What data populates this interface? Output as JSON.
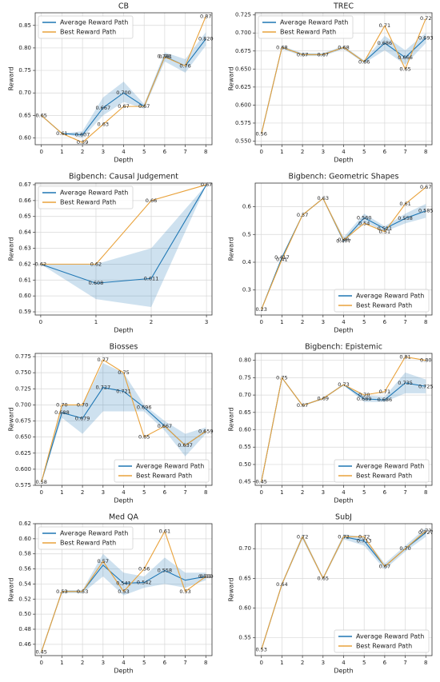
{
  "chart_data": [
    {
      "type": "line",
      "title": "CB",
      "xlabel": "Depth",
      "ylabel": "Reward",
      "grid": true,
      "legend_loc": "upper left",
      "x": [
        0,
        1,
        2,
        3,
        4,
        5,
        6,
        7,
        8
      ],
      "xlim": [
        -0.3,
        8.3
      ],
      "xticks": [
        0,
        1,
        2,
        3,
        4,
        5,
        6,
        7,
        8
      ],
      "ylim": [
        0.585,
        0.878
      ],
      "yticks": [
        {
          "value": 0.6,
          "label": "0.60"
        },
        0.65,
        {
          "value": 0.7,
          "label": "0.70"
        },
        0.75,
        {
          "value": 0.8,
          "label": "0.80"
        },
        0.85
      ],
      "series": [
        {
          "name": "Average Reward Path",
          "color": "#1f77b4",
          "values": [
            0.65,
            0.61,
            0.607,
            0.667,
            0.7,
            0.67,
            0.781,
            0.76,
            0.82
          ],
          "value_labels": [
            "0.65",
            "0.61",
            "0.607",
            "0.667",
            "0.700",
            "0.67",
            "0.781",
            "0.76",
            "0.820"
          ],
          "lower": [
            0.65,
            0.61,
            0.6,
            0.65,
            0.68,
            0.665,
            0.77,
            0.745,
            0.805
          ],
          "upper": [
            0.65,
            0.61,
            0.615,
            0.69,
            0.725,
            0.675,
            0.79,
            0.775,
            0.835
          ]
        },
        {
          "name": "Best Reward Path",
          "color": "#e9a23b",
          "values": [
            0.65,
            0.61,
            0.59,
            0.63,
            0.67,
            0.67,
            0.78,
            0.76,
            0.87
          ],
          "value_labels": [
            null,
            null,
            "0.59",
            "0.63",
            "0.67",
            null,
            "0.78",
            null,
            "0.87"
          ]
        }
      ]
    },
    {
      "type": "line",
      "title": "TREC",
      "xlabel": "Depth",
      "ylabel": "Reward",
      "grid": true,
      "legend_loc": "upper left",
      "x": [
        0,
        1,
        2,
        3,
        4,
        5,
        6,
        7,
        8
      ],
      "xlim": [
        -0.3,
        8.3
      ],
      "xticks": [
        0,
        1,
        2,
        3,
        4,
        5,
        6,
        7,
        8
      ],
      "ylim": [
        0.545,
        0.728
      ],
      "yticks": [
        {
          "value": 0.55,
          "label": "0.550"
        },
        0.575,
        {
          "value": 0.6,
          "label": "0.600"
        },
        0.625,
        {
          "value": 0.65,
          "label": "0.650"
        },
        0.675,
        {
          "value": 0.7,
          "label": "0.700"
        },
        0.725
      ],
      "series": [
        {
          "name": "Average Reward Path",
          "color": "#1f77b4",
          "values": [
            0.56,
            0.68,
            0.67,
            0.67,
            0.68,
            0.66,
            0.686,
            0.666,
            0.693
          ],
          "value_labels": [
            "0.56",
            "0.68",
            "0.67",
            "0.67",
            "0.68",
            "0.66",
            "0.686",
            "0.666",
            "0.693"
          ],
          "lower": [
            0.56,
            0.678,
            0.668,
            0.668,
            0.678,
            0.658,
            0.676,
            0.656,
            0.686
          ],
          "upper": [
            0.56,
            0.682,
            0.672,
            0.672,
            0.682,
            0.662,
            0.696,
            0.676,
            0.7
          ]
        },
        {
          "name": "Best Reward Path",
          "color": "#e9a23b",
          "values": [
            0.56,
            0.68,
            0.67,
            0.67,
            0.68,
            0.66,
            0.71,
            0.65,
            0.72
          ],
          "value_labels": [
            null,
            null,
            null,
            null,
            null,
            null,
            "0.71",
            "0.65",
            "0.72"
          ]
        }
      ]
    },
    {
      "type": "line",
      "title": "Bigbench: Causal Judgement",
      "xlabel": "Depth",
      "ylabel": "Reward",
      "grid": true,
      "legend_loc": "upper left",
      "x": [
        0,
        1,
        2,
        3
      ],
      "xlim": [
        -0.1,
        3.1
      ],
      "xticks": [
        0,
        1,
        2,
        3
      ],
      "ylim": [
        0.588,
        0.671
      ],
      "yticks": [
        0.59,
        {
          "value": 0.6,
          "label": "0.60"
        },
        0.61,
        0.62,
        0.63,
        0.64,
        0.65,
        0.66,
        0.67
      ],
      "series": [
        {
          "name": "Average Reward Path",
          "color": "#1f77b4",
          "values": [
            0.62,
            0.608,
            0.611,
            0.67
          ],
          "value_labels": [
            "0.62",
            "0.608",
            "0.611",
            "0.67"
          ],
          "lower": [
            0.62,
            0.598,
            0.593,
            0.67
          ],
          "upper": [
            0.62,
            0.62,
            0.63,
            0.67
          ]
        },
        {
          "name": "Best Reward Path",
          "color": "#e9a23b",
          "values": [
            0.62,
            0.62,
            0.66,
            0.67
          ],
          "value_labels": [
            null,
            "0.62",
            "0.66",
            null
          ]
        }
      ]
    },
    {
      "type": "line",
      "title": "Bigbench: Geometric Shapes",
      "xlabel": "Depth",
      "ylabel": "Reward",
      "grid": true,
      "legend_loc": "lower right",
      "x": [
        0,
        1,
        2,
        3,
        4,
        5,
        6,
        7,
        8
      ],
      "xlim": [
        -0.3,
        8.3
      ],
      "xticks": [
        0,
        1,
        2,
        3,
        4,
        5,
        6,
        7,
        8
      ],
      "ylim": [
        0.21,
        0.685
      ],
      "yticks": [
        0.3,
        0.4,
        0.5,
        0.6
      ],
      "series": [
        {
          "name": "Average Reward Path",
          "color": "#1f77b4",
          "values": [
            0.23,
            0.417,
            0.57,
            0.63,
            0.477,
            0.56,
            0.521,
            0.558,
            0.585
          ],
          "value_labels": [
            "0.23",
            "0.417",
            "0.57",
            "0.63",
            "0.477",
            "0.560",
            "0.521",
            "0.558",
            "0.585"
          ],
          "lower": [
            0.23,
            0.415,
            0.568,
            0.628,
            0.47,
            0.545,
            0.51,
            0.54,
            0.56
          ],
          "upper": [
            0.23,
            0.419,
            0.572,
            0.632,
            0.49,
            0.575,
            0.53,
            0.575,
            0.61
          ]
        },
        {
          "name": "Best Reward Path",
          "color": "#e9a23b",
          "values": [
            0.23,
            0.41,
            0.57,
            0.63,
            0.48,
            0.54,
            0.51,
            0.61,
            0.67
          ],
          "value_labels": [
            null,
            "0.41",
            null,
            null,
            "0.48",
            "0.54",
            "0.51",
            "0.61",
            "0.67"
          ]
        }
      ]
    },
    {
      "type": "line",
      "title": "Biosses",
      "xlabel": "Depth",
      "ylabel": "Reward",
      "grid": true,
      "legend_loc": "lower right",
      "x": [
        0,
        1,
        2,
        3,
        4,
        5,
        6,
        7,
        8
      ],
      "xlim": [
        -0.3,
        8.3
      ],
      "xticks": [
        0,
        1,
        2,
        3,
        4,
        5,
        6,
        7,
        8
      ],
      "ylim": [
        0.575,
        0.78
      ],
      "yticks": [
        0.575,
        {
          "value": 0.6,
          "label": "0.600"
        },
        0.625,
        {
          "value": 0.65,
          "label": "0.650"
        },
        0.675,
        {
          "value": 0.7,
          "label": "0.700"
        },
        0.725,
        {
          "value": 0.75,
          "label": "0.750"
        },
        0.775
      ],
      "series": [
        {
          "name": "Average Reward Path",
          "color": "#1f77b4",
          "values": [
            0.58,
            0.688,
            0.679,
            0.727,
            0.721,
            0.696,
            0.667,
            0.637,
            0.659
          ],
          "value_labels": [
            "0.58",
            "0.688",
            "0.679",
            "0.727",
            "0.721",
            "0.696",
            "0.667",
            "0.637",
            "0.659"
          ],
          "lower": [
            0.58,
            0.68,
            0.655,
            0.69,
            0.69,
            0.69,
            0.66,
            0.62,
            0.655
          ],
          "upper": [
            0.58,
            0.7,
            0.7,
            0.765,
            0.75,
            0.7,
            0.675,
            0.655,
            0.665
          ]
        },
        {
          "name": "Best Reward Path",
          "color": "#e9a23b",
          "values": [
            0.58,
            0.7,
            0.7,
            0.77,
            0.75,
            0.65,
            0.667,
            0.637,
            0.659
          ],
          "value_labels": [
            null,
            "0.70",
            "0.70",
            "0.77",
            "0.75",
            "0.65",
            null,
            null,
            null
          ]
        }
      ]
    },
    {
      "type": "line",
      "title": "Bigbench: Epistemic",
      "xlabel": "Depth",
      "ylabel": "Reward",
      "grid": true,
      "legend_loc": "lower right",
      "x": [
        0,
        1,
        2,
        3,
        4,
        5,
        6,
        7,
        8
      ],
      "xlim": [
        -0.3,
        8.3
      ],
      "xticks": [
        0,
        1,
        2,
        3,
        4,
        5,
        6,
        7,
        8
      ],
      "ylim": [
        0.44,
        0.82
      ],
      "yticks": [
        0.45,
        {
          "value": 0.5,
          "label": "0.50"
        },
        0.55,
        {
          "value": 0.6,
          "label": "0.60"
        },
        0.65,
        {
          "value": 0.7,
          "label": "0.70"
        },
        0.75,
        {
          "value": 0.8,
          "label": "0.80"
        }
      ],
      "series": [
        {
          "name": "Average Reward Path",
          "color": "#1f77b4",
          "values": [
            0.45,
            0.75,
            0.67,
            0.69,
            0.73,
            0.689,
            0.686,
            0.735,
            0.725
          ],
          "value_labels": [
            "0.45",
            "0.75",
            "0.67",
            "0.69",
            "0.73",
            "0.689",
            "0.686",
            "0.735",
            "0.725"
          ],
          "lower": [
            0.45,
            0.748,
            0.668,
            0.688,
            0.728,
            0.68,
            0.68,
            0.705,
            0.705
          ],
          "upper": [
            0.45,
            0.752,
            0.672,
            0.692,
            0.732,
            0.7,
            0.695,
            0.765,
            0.745
          ]
        },
        {
          "name": "Best Reward Path",
          "color": "#e9a23b",
          "values": [
            0.45,
            0.75,
            0.67,
            0.69,
            0.73,
            0.7,
            0.71,
            0.81,
            0.8
          ],
          "value_labels": [
            null,
            null,
            null,
            null,
            null,
            "0.70",
            "0.71",
            "0.81",
            "0.80"
          ]
        }
      ]
    },
    {
      "type": "line",
      "title": "Med QA",
      "xlabel": "Depth",
      "ylabel": "Reward",
      "grid": true,
      "legend_loc": "upper left",
      "x": [
        0,
        1,
        2,
        3,
        4,
        5,
        6,
        7,
        8
      ],
      "xlim": [
        -0.3,
        8.3
      ],
      "xticks": [
        0,
        1,
        2,
        3,
        4,
        5,
        6,
        7,
        8
      ],
      "ylim": [
        0.445,
        0.62
      ],
      "yticks": [
        0.46,
        0.48,
        {
          "value": 0.5,
          "label": "0.50"
        },
        0.52,
        0.54,
        0.56,
        0.58,
        {
          "value": 0.6,
          "label": "0.60"
        },
        0.62
      ],
      "series": [
        {
          "name": "Average Reward Path",
          "color": "#1f77b4",
          "values": [
            0.45,
            0.53,
            0.53,
            0.565,
            0.541,
            0.542,
            0.558,
            0.545,
            0.55
          ],
          "value_labels": [
            "0.45",
            "0.53",
            "0.53",
            null,
            "0.541",
            "0.542",
            "0.558",
            null,
            "0.550"
          ],
          "lower": [
            0.45,
            0.528,
            0.528,
            0.55,
            0.525,
            0.535,
            0.54,
            0.535,
            0.545
          ],
          "upper": [
            0.45,
            0.532,
            0.532,
            0.58,
            0.555,
            0.55,
            0.575,
            0.555,
            0.555
          ]
        },
        {
          "name": "Best Reward Path",
          "color": "#e9a23b",
          "values": [
            0.45,
            0.53,
            0.53,
            0.57,
            0.53,
            0.56,
            0.61,
            0.53,
            0.55
          ],
          "value_labels": [
            null,
            null,
            null,
            "0.57",
            "0.53",
            "0.56",
            "0.61",
            "0.53",
            "0.55"
          ]
        }
      ]
    },
    {
      "type": "line",
      "title": "SubJ",
      "xlabel": "Depth",
      "ylabel": "Reward",
      "grid": true,
      "legend_loc": "lower right",
      "x": [
        0,
        1,
        2,
        3,
        4,
        5,
        6,
        7,
        8
      ],
      "xlim": [
        -0.3,
        8.3
      ],
      "xticks": [
        0,
        1,
        2,
        3,
        4,
        5,
        6,
        7,
        8
      ],
      "ylim": [
        0.52,
        0.742
      ],
      "yticks": [
        0.55,
        {
          "value": 0.6,
          "label": "0.60"
        },
        0.65,
        {
          "value": 0.7,
          "label": "0.70"
        }
      ],
      "series": [
        {
          "name": "Average Reward Path",
          "color": "#1f77b4",
          "values": [
            0.53,
            0.64,
            0.72,
            0.65,
            0.72,
            0.713,
            0.67,
            0.7,
            0.727
          ],
          "value_labels": [
            "0.53",
            "0.64",
            "0.72",
            "0.65",
            "0.72",
            "0.713",
            "0.67",
            "0.70",
            "0.727"
          ],
          "lower": [
            0.53,
            0.638,
            0.716,
            0.648,
            0.716,
            0.705,
            0.665,
            0.695,
            0.72
          ],
          "upper": [
            0.53,
            0.642,
            0.724,
            0.652,
            0.724,
            0.72,
            0.675,
            0.705,
            0.735
          ]
        },
        {
          "name": "Best Reward Path",
          "color": "#e9a23b",
          "values": [
            0.53,
            0.64,
            0.72,
            0.65,
            0.72,
            0.72,
            0.67,
            0.7,
            0.73
          ],
          "value_labels": [
            null,
            null,
            null,
            null,
            null,
            "0.72",
            null,
            null,
            "0.73"
          ]
        }
      ]
    }
  ]
}
